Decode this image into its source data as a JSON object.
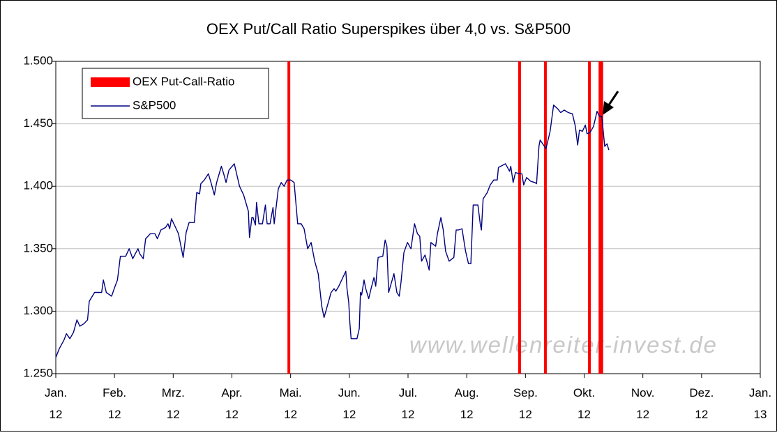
{
  "chart_data": {
    "type": "line",
    "title": "OEX Put/Call Ratio Superspikes über 4,0 vs. S&P500",
    "watermark": "www.wellenreiter-invest.de",
    "ylim": [
      1250,
      1500
    ],
    "yticks": [
      {
        "value": 1250,
        "label": "1.250"
      },
      {
        "value": 1300,
        "label": "1.300"
      },
      {
        "value": 1350,
        "label": "1.350"
      },
      {
        "value": 1400,
        "label": "1.400"
      },
      {
        "value": 1450,
        "label": "1.450"
      },
      {
        "value": 1500,
        "label": "1.500"
      }
    ],
    "xlim": [
      0,
      12
    ],
    "xticks": [
      {
        "value": 0,
        "label": "Jan. 12"
      },
      {
        "value": 1,
        "label": "Feb. 12"
      },
      {
        "value": 2,
        "label": "Mrz. 12"
      },
      {
        "value": 3,
        "label": "Apr. 12"
      },
      {
        "value": 4,
        "label": "Mai. 12"
      },
      {
        "value": 5,
        "label": "Jun. 12"
      },
      {
        "value": 6,
        "label": "Jul. 12"
      },
      {
        "value": 7,
        "label": "Aug. 12"
      },
      {
        "value": 8,
        "label": "Sep. 12"
      },
      {
        "value": 9,
        "label": "Okt. 12"
      },
      {
        "value": 10,
        "label": "Nov. 12"
      },
      {
        "value": 11,
        "label": "Dez. 12"
      },
      {
        "value": 12,
        "label": "Jan. 13"
      }
    ],
    "grid": true,
    "legend": "top-left",
    "series": [
      {
        "name": "OEX Put-Call-Ratio",
        "color": "#ff0000",
        "x": [
          3.97,
          7.9,
          8.34,
          9.09,
          9.27,
          9.3
        ]
      },
      {
        "name": "S&P500",
        "color": "#000080",
        "x": [
          0,
          0.06,
          0.14,
          0.18,
          0.24,
          0.3,
          0.36,
          0.41,
          0.48,
          0.54,
          0.57,
          0.66,
          0.78,
          0.81,
          0.86,
          0.95,
          1.01,
          1.05,
          1.1,
          1.19,
          1.25,
          1.31,
          1.4,
          1.43,
          1.49,
          1.53,
          1.61,
          1.69,
          1.73,
          1.79,
          1.87,
          1.91,
          1.94,
          1.97,
          2.03,
          2.09,
          2.17,
          2.22,
          2.27,
          2.36,
          2.4,
          2.45,
          2.47,
          2.53,
          2.6,
          2.65,
          2.7,
          2.74,
          2.82,
          2.86,
          2.9,
          2.95,
          3.04,
          3.13,
          3.2,
          3.28,
          3.3,
          3.34,
          3.36,
          3.4,
          3.42,
          3.46,
          3.52,
          3.57,
          3.6,
          3.65,
          3.7,
          3.72,
          3.79,
          3.84,
          3.89,
          3.94,
          4.0,
          4.06,
          4.12,
          4.18,
          4.23,
          4.29,
          4.35,
          4.41,
          4.47,
          4.53,
          4.57,
          4.63,
          4.69,
          4.74,
          4.77,
          4.82,
          4.89,
          4.94,
          4.96,
          4.99,
          5.01,
          5.03,
          5.13,
          5.17,
          5.19,
          5.21,
          5.25,
          5.28,
          5.33,
          5.37,
          5.42,
          5.45,
          5.49,
          5.57,
          5.61,
          5.64,
          5.67,
          5.73,
          5.76,
          5.81,
          5.85,
          5.88,
          5.93,
          5.99,
          6.05,
          6.11,
          6.16,
          6.2,
          6.23,
          6.29,
          6.32,
          6.36,
          6.39,
          6.47,
          6.5,
          6.56,
          6.6,
          6.64,
          6.7,
          6.78,
          6.82,
          6.86,
          6.92,
          6.98,
          7.03,
          7.07,
          7.11,
          7.19,
          7.23,
          7.25,
          7.28,
          7.35,
          7.4,
          7.46,
          7.52,
          7.54,
          7.66,
          7.73,
          7.75,
          7.79,
          7.83,
          7.9,
          7.94,
          7.97,
          8.02,
          8.09,
          8.16,
          8.19,
          8.23,
          8.25,
          8.35,
          8.42,
          8.48,
          8.55,
          8.6,
          8.66,
          8.73,
          8.8,
          8.85,
          8.89,
          8.92,
          8.97,
          9.02,
          9.05,
          9.1,
          9.16,
          9.22,
          9.26,
          9.3,
          9.35,
          9.39,
          9.42
        ],
        "values": [
          1263,
          1270,
          1277,
          1282,
          1278,
          1283,
          1293,
          1288,
          1290,
          1293,
          1308,
          1315,
          1315,
          1325,
          1315,
          1312,
          1320,
          1325,
          1344,
          1344,
          1350,
          1342,
          1350,
          1346,
          1342,
          1358,
          1362,
          1362,
          1358,
          1365,
          1367,
          1370,
          1366,
          1374,
          1368,
          1362,
          1343,
          1363,
          1371,
          1371,
          1395,
          1394,
          1402,
          1405,
          1410,
          1402,
          1393,
          1403,
          1416,
          1410,
          1403,
          1413,
          1418,
          1400,
          1393,
          1380,
          1359,
          1375,
          1375,
          1369,
          1387,
          1370,
          1370,
          1385,
          1370,
          1370,
          1383,
          1370,
          1398,
          1403,
          1400,
          1405,
          1405,
          1403,
          1370,
          1370,
          1366,
          1350,
          1355,
          1340,
          1330,
          1304,
          1295,
          1305,
          1315,
          1318,
          1316,
          1320,
          1327,
          1332,
          1318,
          1307,
          1290,
          1278,
          1278,
          1286,
          1315,
          1313,
          1325,
          1318,
          1310,
          1318,
          1327,
          1320,
          1343,
          1344,
          1357,
          1352,
          1315,
          1325,
          1330,
          1315,
          1312,
          1323,
          1347,
          1355,
          1350,
          1370,
          1362,
          1360,
          1340,
          1345,
          1340,
          1333,
          1355,
          1352,
          1362,
          1375,
          1365,
          1348,
          1340,
          1343,
          1365,
          1365,
          1366,
          1348,
          1338,
          1338,
          1385,
          1385,
          1370,
          1365,
          1390,
          1395,
          1401,
          1405,
          1405,
          1415,
          1418,
          1412,
          1416,
          1403,
          1411,
          1410,
          1410,
          1401,
          1407,
          1404,
          1403,
          1402,
          1432,
          1437,
          1430,
          1444,
          1465,
          1462,
          1459,
          1461,
          1459,
          1458,
          1448,
          1433,
          1445,
          1444,
          1449,
          1442,
          1443,
          1448,
          1460,
          1456,
          1456,
          1432,
          1434,
          1429
        ]
      }
    ]
  }
}
